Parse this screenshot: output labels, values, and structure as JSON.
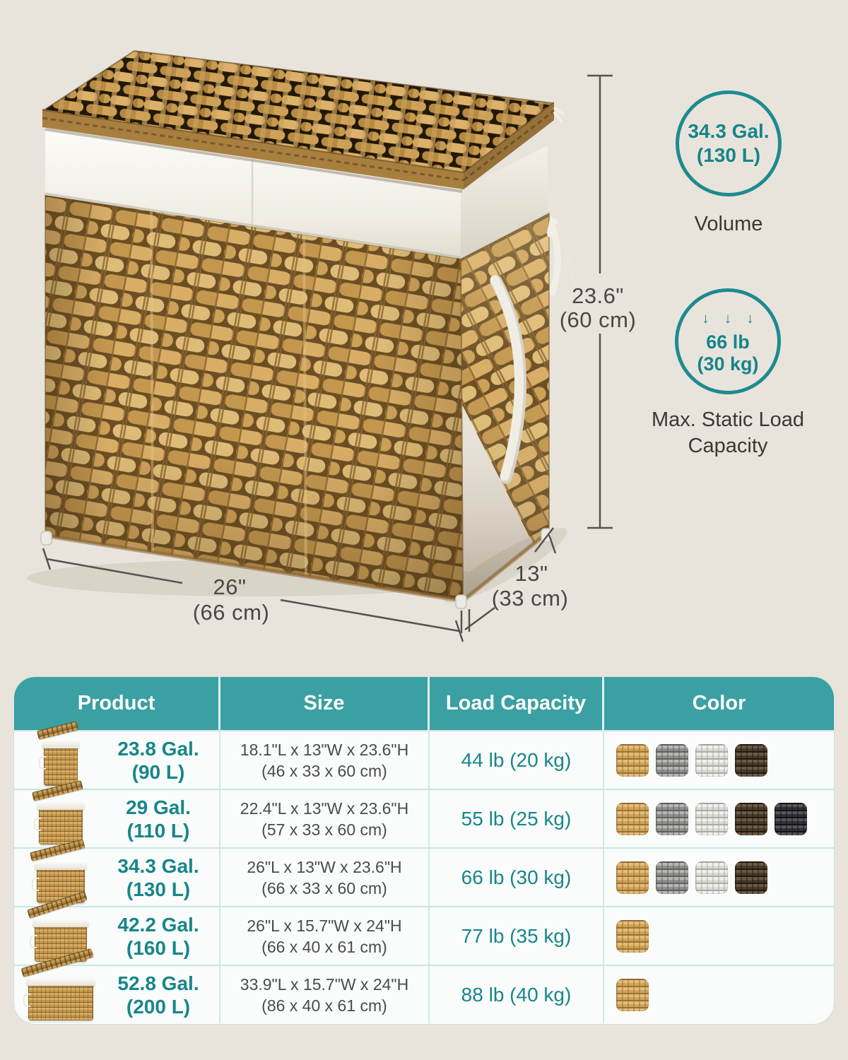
{
  "theme": {
    "teal_header": "#3aa0a3",
    "teal_text": "#17868a",
    "teal_circle_border": "#1d8b8f",
    "background": "#e8e4dc",
    "table_background": "#f9fcfb",
    "divider": "#c9e6e4",
    "text_dark": "#4b4b4b"
  },
  "scene": {
    "dimensions": {
      "height_in": "23.6\"",
      "height_cm": "(60 cm)",
      "width_in": "26\"",
      "width_cm": "(66 cm)",
      "depth_in": "13\"",
      "depth_cm": "(33 cm)"
    },
    "volume_badge": {
      "value_line1": "34.3 Gal.",
      "value_line2": "(130 L)",
      "label": "Volume"
    },
    "load_badge": {
      "arrows": "↓ ↓ ↓",
      "value_line1": "66 lb",
      "value_line2": "(30 kg)",
      "label_line1": "Max. Static Load",
      "label_line2": "Capacity"
    }
  },
  "table": {
    "headers": [
      "Product",
      "Size",
      "Load Capacity",
      "Color"
    ],
    "rows": [
      {
        "volume_line1": "23.8 Gal.",
        "volume_line2": "(90 L)",
        "size_line1": "18.1\"L x 13\"W x 23.6\"H",
        "size_line2": "(46 x 33 x 60 cm)",
        "load": "44 lb (20 kg)",
        "colors": [
          "natural",
          "gray",
          "white",
          "brown"
        ]
      },
      {
        "volume_line1": "29 Gal.",
        "volume_line2": "(110 L)",
        "size_line1": "22.4\"L x 13\"W x 23.6\"H",
        "size_line2": "(57 x 33 x 60 cm)",
        "load": "55 lb (25 kg)",
        "colors": [
          "natural",
          "gray",
          "white",
          "brown",
          "black"
        ]
      },
      {
        "volume_line1": "34.3 Gal.",
        "volume_line2": "(130 L)",
        "size_line1": "26\"L x 13\"W x 23.6\"H",
        "size_line2": "(66 x 33 x 60 cm)",
        "load": "66 lb (30 kg)",
        "colors": [
          "natural",
          "gray",
          "white",
          "brown"
        ]
      },
      {
        "volume_line1": "42.2 Gal.",
        "volume_line2": "(160 L)",
        "size_line1": "26\"L x 15.7\"W x 24\"H",
        "size_line2": "(66 x 40 x 61 cm)",
        "load": "77 lb (35 kg)",
        "colors": [
          "natural"
        ]
      },
      {
        "volume_line1": "52.8 Gal.",
        "volume_line2": "(200 L)",
        "size_line1": "33.9\"L x 15.7\"W x 24\"H",
        "size_line2": "(86 x 40 x 61 cm)",
        "load": "88 lb (40 kg)",
        "colors": [
          "natural"
        ]
      }
    ]
  },
  "swatch_colors": {
    "natural": {
      "base": "#d2a257",
      "hi": "#e4bd7c",
      "gap": "#9a7233"
    },
    "gray": {
      "base": "#8f8f8d",
      "hi": "#b7b7b5",
      "gap": "#606060"
    },
    "white": {
      "base": "#dcdcd7",
      "hi": "#f0f0ed",
      "gap": "#ababa5"
    },
    "brown": {
      "base": "#4a3b2c",
      "hi": "#6d5a46",
      "gap": "#221910"
    },
    "black": {
      "base": "#323236",
      "hi": "#56565c",
      "gap": "#131316"
    }
  }
}
